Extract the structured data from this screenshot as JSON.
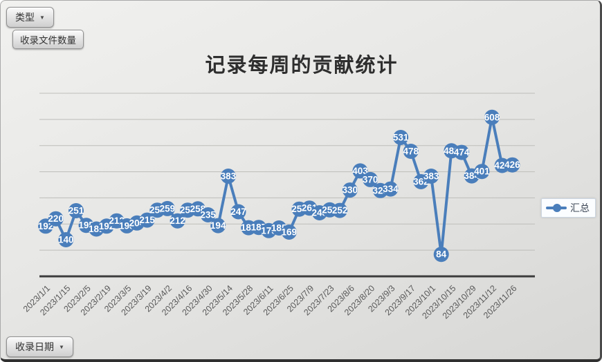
{
  "filters": {
    "type_button": {
      "label": "类型"
    },
    "value_button": {
      "label": "收录文件数量"
    },
    "date_button": {
      "label": "收录日期"
    }
  },
  "legend": {
    "label": "汇总"
  },
  "chart_data": {
    "type": "line",
    "title": "记录每周的贡献统计",
    "series": [
      {
        "name": "汇总",
        "values": [
          192,
          220,
          140,
          251,
          195,
          181,
          192,
          212,
          193,
          204,
          215,
          253,
          259,
          212,
          253,
          258,
          235,
          194,
          383,
          247,
          186,
          187,
          175,
          185,
          169,
          257,
          261,
          243,
          254,
          252,
          330,
          403,
          370,
          328,
          334,
          531,
          478,
          362,
          383,
          84,
          480,
          474,
          384,
          401,
          608,
          424,
          426
        ]
      }
    ],
    "x_tick_labels": [
      "2023/1/1",
      "2023/1/15",
      "2023/2/5",
      "2023/2/19",
      "2023/3/5",
      "2023/3/19",
      "2023/4/2",
      "2023/4/16",
      "2023/4/30",
      "2023/5/14",
      "2023/5/28",
      "2023/6/11",
      "2023/6/25",
      "2023/7/9",
      "2023/7/23",
      "2023/8/6",
      "2023/8/20",
      "2023/9/3",
      "2023/9/17",
      "2023/10/1",
      "2023/10/15",
      "2023/10/29",
      "2023/11/12",
      "2023/11/26"
    ],
    "x_tick_every": 2,
    "ylim": [
      0,
      700
    ],
    "gridline_step": 100,
    "grid": true,
    "legend_position": "right",
    "data_labels": "centered-on-marker",
    "colors": {
      "line": "#4a7ebb",
      "label_text": "#ffffff",
      "axis": "#3c3c3c",
      "gridline": "#bdbdb9",
      "tick_text": "#595959"
    }
  }
}
